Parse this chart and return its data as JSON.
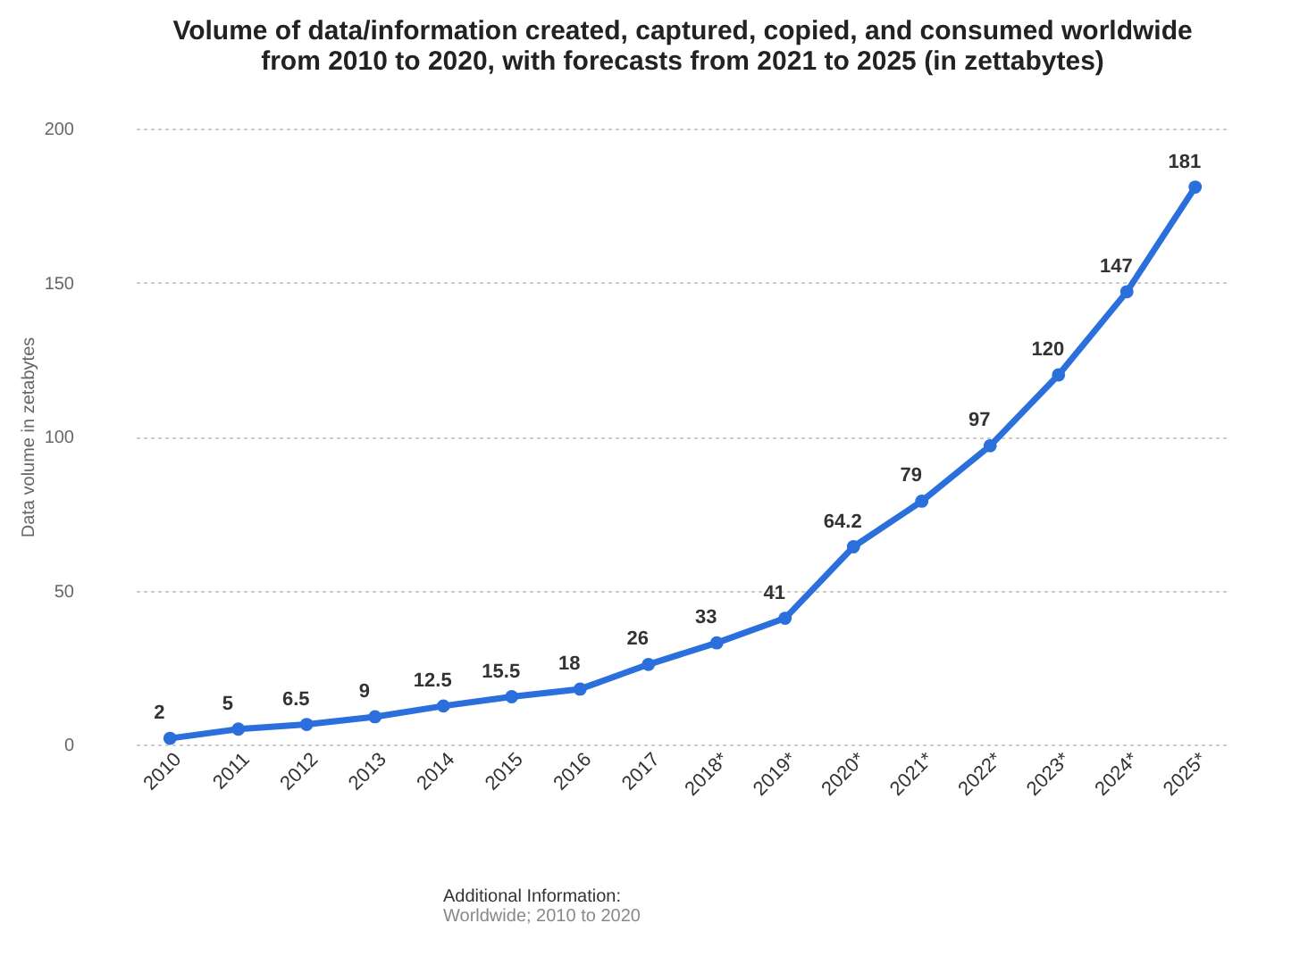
{
  "chart_data": {
    "type": "line",
    "title": "Volume of data/information created, captured, copied, and consumed worldwide from 2010 to 2020, with forecasts from 2021 to 2025 (in zettabytes)",
    "ylabel": "Data volume in zetabytes",
    "categories": [
      "2010",
      "2011",
      "2012",
      "2013",
      "2014",
      "2015",
      "2016",
      "2017",
      "2018*",
      "2019*",
      "2020*",
      "2021*",
      "2022*",
      "2023*",
      "2024*",
      "2025*"
    ],
    "series": [
      {
        "color": "#2b6fdc",
        "values": [
          2,
          5,
          6.5,
          9,
          12.5,
          15.5,
          18,
          26,
          33,
          41,
          64.2,
          79,
          97,
          120,
          147,
          181
        ]
      }
    ],
    "ylim": [
      0,
      200
    ],
    "yticks": [
      0,
      50,
      100,
      150,
      200
    ],
    "grid": "y",
    "marker": "circle",
    "line_style": "solid",
    "data_labels": true,
    "annotations": [
      "Additional Information:",
      "Worldwide; 2010 to 2020"
    ]
  }
}
